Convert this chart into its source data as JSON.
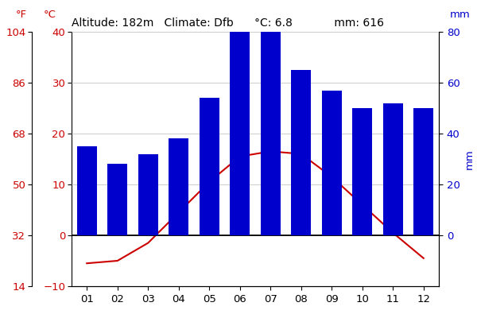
{
  "months": [
    "01",
    "02",
    "03",
    "04",
    "05",
    "06",
    "07",
    "08",
    "09",
    "10",
    "11",
    "12"
  ],
  "precipitation_mm": [
    35,
    28,
    32,
    38,
    54,
    80,
    80,
    65,
    57,
    50,
    52,
    50
  ],
  "temperature_c": [
    -5.5,
    -5.0,
    -1.5,
    4.5,
    10.5,
    15.5,
    16.5,
    16.0,
    11.5,
    6.0,
    0.5,
    -4.5
  ],
  "bar_color": "#0000cc",
  "line_color": "#cc0000",
  "ylim_c": [
    -10,
    40
  ],
  "ylim_mm": [
    -20,
    80
  ],
  "yticks_c": [
    -10,
    0,
    10,
    20,
    30,
    40
  ],
  "yticks_f": [
    14,
    32,
    50,
    68,
    86,
    104
  ],
  "yticks_mm": [
    0,
    20,
    40,
    60,
    80
  ],
  "grid_color": "#cccccc",
  "background_color": "#ffffff",
  "title_fontsize": 10,
  "tick_fontsize": 9.5
}
